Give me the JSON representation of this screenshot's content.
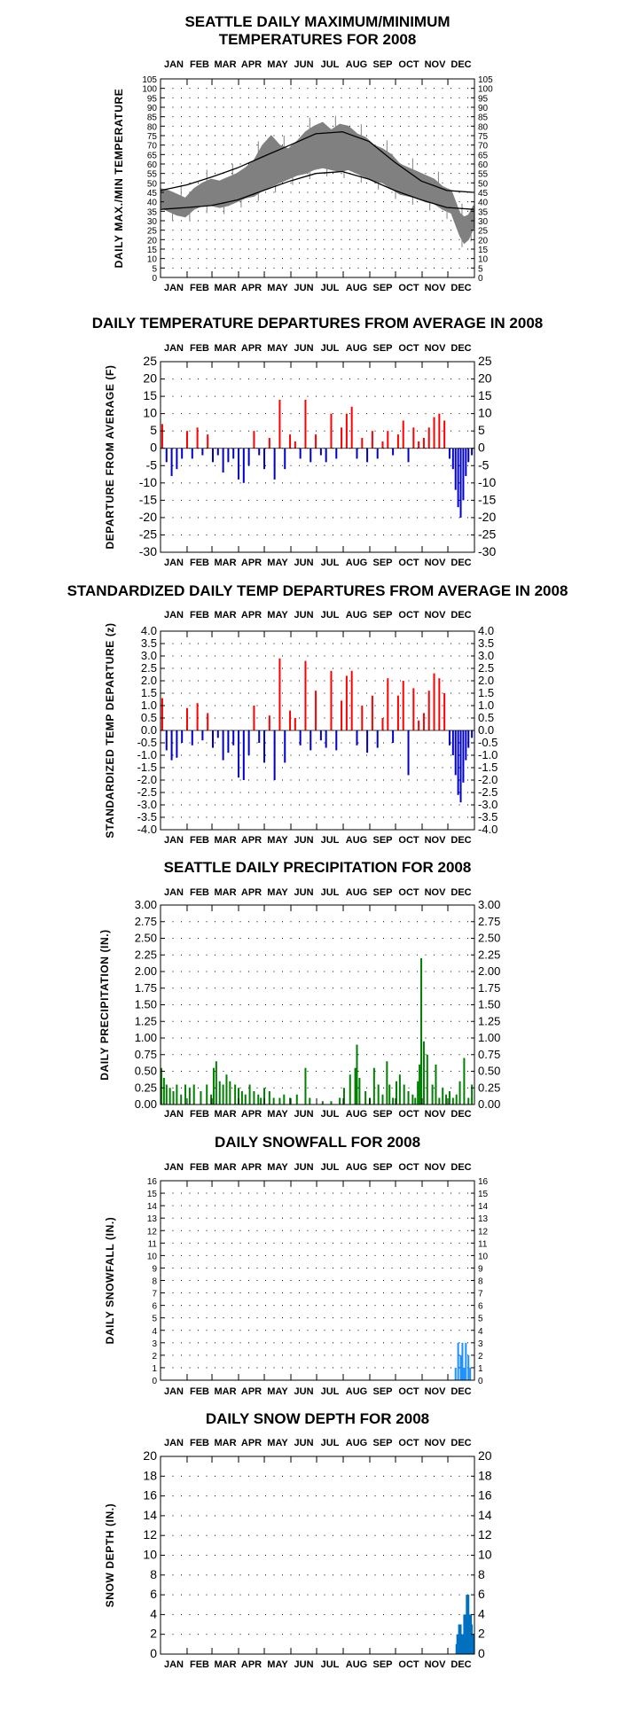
{
  "months": [
    "JAN",
    "FEB",
    "MAR",
    "APR",
    "MAY",
    "JUN",
    "JUL",
    "AUG",
    "SEP",
    "OCT",
    "NOV",
    "DEC"
  ],
  "colors": {
    "observed_range": "#808080",
    "normal_line": "#000000",
    "positive_bar": "#ff0000",
    "negative_bar": "#0000cc",
    "precip_bar": "#008000",
    "snowfall_bar": "#1e90ff",
    "snowdepth_bar": "#0070c0",
    "grid_dot": "#000000"
  },
  "chart_data": [
    {
      "id": "temps",
      "type": "area",
      "title": [
        "SEATTLE DAILY MAXIMUM/MINIMUM",
        "TEMPERATURES FOR 2008"
      ],
      "ylabel": "DAILY MAX./MIN TEMPERATURE",
      "ylim": [
        0,
        105
      ],
      "ytick_step": 5,
      "xlim": [
        1,
        366
      ],
      "grid": true,
      "series": [
        {
          "role": "observed_max",
          "x": [
            1,
            10,
            20,
            30,
            40,
            50,
            60,
            70,
            80,
            90,
            100,
            110,
            120,
            130,
            140,
            150,
            160,
            170,
            180,
            190,
            200,
            210,
            220,
            230,
            240,
            250,
            260,
            270,
            280,
            290,
            300,
            310,
            320,
            330,
            340,
            350,
            355,
            360,
            366
          ],
          "values": [
            47,
            46,
            44,
            42,
            47,
            50,
            52,
            51,
            53,
            55,
            58,
            62,
            70,
            75,
            70,
            68,
            72,
            77,
            80,
            82,
            78,
            81,
            80,
            76,
            74,
            70,
            68,
            65,
            60,
            58,
            56,
            54,
            52,
            48,
            46,
            34,
            32,
            33,
            38
          ]
        },
        {
          "role": "observed_min",
          "x": [
            1,
            10,
            20,
            30,
            40,
            50,
            60,
            70,
            80,
            90,
            100,
            110,
            120,
            130,
            140,
            150,
            160,
            170,
            180,
            190,
            200,
            210,
            220,
            230,
            240,
            250,
            260,
            270,
            280,
            290,
            300,
            310,
            320,
            330,
            340,
            350,
            355,
            360,
            366
          ],
          "values": [
            37,
            35,
            33,
            32,
            36,
            38,
            38,
            37,
            38,
            40,
            42,
            43,
            46,
            48,
            50,
            52,
            54,
            55,
            57,
            58,
            57,
            56,
            57,
            55,
            53,
            51,
            50,
            47,
            44,
            43,
            42,
            40,
            39,
            36,
            34,
            22,
            18,
            20,
            26
          ]
        },
        {
          "role": "normal_max",
          "x": [
            1,
            32,
            60,
            91,
            121,
            152,
            182,
            213,
            244,
            274,
            305,
            335,
            366
          ],
          "values": [
            46,
            49,
            53,
            58,
            64,
            70,
            76,
            77,
            72,
            61,
            51,
            46,
            45
          ]
        },
        {
          "role": "normal_min",
          "x": [
            1,
            32,
            60,
            91,
            121,
            152,
            182,
            213,
            244,
            274,
            305,
            335,
            366
          ],
          "values": [
            36,
            37,
            38,
            41,
            46,
            51,
            55,
            56,
            52,
            46,
            41,
            37,
            36
          ]
        }
      ]
    },
    {
      "id": "departures",
      "type": "bar",
      "title": [
        "DAILY TEMPERATURE DEPARTURES FROM AVERAGE IN 2008"
      ],
      "ylabel": "DEPARTURE FROM AVERAGE (F)",
      "ylim": [
        -30,
        25
      ],
      "ytick_step": 5,
      "xlim": [
        1,
        366
      ],
      "grid": true,
      "x": [
        3,
        8,
        14,
        20,
        26,
        32,
        38,
        44,
        50,
        56,
        62,
        68,
        74,
        80,
        86,
        92,
        98,
        104,
        110,
        116,
        122,
        128,
        134,
        140,
        146,
        152,
        158,
        164,
        170,
        176,
        182,
        188,
        194,
        200,
        206,
        212,
        218,
        224,
        230,
        236,
        242,
        248,
        254,
        260,
        266,
        272,
        278,
        284,
        290,
        296,
        302,
        308,
        314,
        320,
        326,
        332,
        338,
        342,
        345,
        348,
        351,
        354,
        357,
        360,
        364
      ],
      "values": [
        7,
        -4,
        -8,
        -6,
        -3,
        5,
        -3,
        6,
        -2,
        4,
        -4,
        -2,
        -7,
        -4,
        -3,
        -9,
        -10,
        -5,
        5,
        -2,
        -6,
        3,
        -9,
        14,
        -6,
        4,
        2,
        -3,
        14,
        -4,
        4,
        -2,
        -4,
        10,
        -3,
        6,
        10,
        12,
        -3,
        3,
        -4,
        5,
        -3,
        2,
        5,
        -2,
        4,
        8,
        -4,
        6,
        2,
        3,
        6,
        9,
        10,
        8,
        -3,
        -6,
        -12,
        -17,
        -20,
        -15,
        -8,
        -4,
        -2
      ]
    },
    {
      "id": "standardized",
      "type": "bar",
      "title": [
        "STANDARDIZED DAILY TEMP DEPARTURES FROM AVERAGE IN 2008"
      ],
      "ylabel": "STANDARDIZED TEMP DEPARTURE (z)",
      "ylim": [
        -4,
        4
      ],
      "ytick_step": 0.5,
      "xlim": [
        1,
        366
      ],
      "grid": true,
      "x": [
        3,
        8,
        14,
        20,
        26,
        32,
        38,
        44,
        50,
        56,
        62,
        68,
        74,
        80,
        86,
        92,
        98,
        104,
        110,
        116,
        122,
        128,
        134,
        140,
        146,
        152,
        158,
        164,
        170,
        176,
        182,
        188,
        194,
        200,
        206,
        212,
        218,
        224,
        230,
        236,
        242,
        248,
        254,
        260,
        266,
        272,
        278,
        284,
        290,
        296,
        302,
        308,
        314,
        320,
        326,
        332,
        338,
        342,
        345,
        348,
        351,
        354,
        357,
        360,
        364
      ],
      "values": [
        1.3,
        -0.8,
        -1.2,
        -1.1,
        -0.5,
        0.9,
        -0.6,
        1.1,
        -0.4,
        0.7,
        -0.7,
        -0.3,
        -1.2,
        -0.9,
        -0.6,
        -1.9,
        -2.0,
        -1.0,
        1.0,
        -0.5,
        -1.3,
        0.6,
        -2.0,
        2.9,
        -1.3,
        0.8,
        0.5,
        -0.6,
        2.8,
        -0.8,
        1.6,
        -0.4,
        -0.7,
        2.4,
        -0.8,
        1.2,
        2.2,
        2.4,
        -0.6,
        1.0,
        -0.9,
        1.4,
        -0.7,
        0.5,
        2.1,
        -0.5,
        1.4,
        2.0,
        -1.8,
        1.7,
        0.4,
        0.7,
        1.6,
        2.3,
        2.1,
        1.5,
        -0.6,
        -1.0,
        -1.8,
        -2.6,
        -2.9,
        -2.1,
        -1.2,
        -0.7,
        -0.3
      ]
    },
    {
      "id": "precip",
      "type": "bar",
      "title": [
        "SEATTLE DAILY PRECIPITATION FOR 2008"
      ],
      "ylabel": "DAILY PRECIPITATION (IN.)",
      "ylim": [
        0,
        3
      ],
      "ytick_step": 0.25,
      "xlim": [
        1,
        366
      ],
      "grid": true,
      "x": [
        2,
        5,
        8,
        12,
        16,
        20,
        25,
        30,
        35,
        40,
        48,
        55,
        60,
        63,
        66,
        70,
        74,
        78,
        82,
        88,
        92,
        96,
        100,
        105,
        110,
        115,
        118,
        122,
        128,
        133,
        140,
        145,
        152,
        160,
        170,
        175,
        190,
        200,
        210,
        215,
        222,
        228,
        230,
        233,
        240,
        245,
        250,
        255,
        260,
        265,
        268,
        272,
        276,
        280,
        285,
        290,
        295,
        298,
        301,
        303,
        305,
        308,
        312,
        318,
        322,
        326,
        330,
        334,
        338,
        342,
        346,
        350,
        355,
        360,
        364
      ],
      "values": [
        0.55,
        0.4,
        0.3,
        0.25,
        0.2,
        0.3,
        0.15,
        0.3,
        0.25,
        0.3,
        0.2,
        0.3,
        0.15,
        0.55,
        0.65,
        0.35,
        0.3,
        0.45,
        0.35,
        0.3,
        0.25,
        0.2,
        0.15,
        0.3,
        0.2,
        0.15,
        0.1,
        0.25,
        0.2,
        0.1,
        0.1,
        0.15,
        0.1,
        0.15,
        0.55,
        0.1,
        0.05,
        0.05,
        0.1,
        0.25,
        0.45,
        0.55,
        0.9,
        0.4,
        0.2,
        0.1,
        0.55,
        0.3,
        0.15,
        0.65,
        0.3,
        0.1,
        0.35,
        0.45,
        0.3,
        0.2,
        0.15,
        0.1,
        0.35,
        0.6,
        2.2,
        0.95,
        0.75,
        0.3,
        0.6,
        0.1,
        0.25,
        0.15,
        0.2,
        0.1,
        0.15,
        0.35,
        0.7,
        0.1,
        0.3
      ]
    },
    {
      "id": "snowfall",
      "type": "bar",
      "title": [
        "DAILY SNOWFALL FOR 2008"
      ],
      "ylabel": "DAILY SNOWFALL (IN.)",
      "ylim": [
        0,
        16
      ],
      "ytick_step": 1,
      "xlim": [
        1,
        366
      ],
      "grid": true,
      "x": [
        345,
        348,
        351,
        353,
        355,
        357,
        360,
        362
      ],
      "values": [
        1,
        3,
        2,
        3,
        1,
        3,
        2,
        1
      ]
    },
    {
      "id": "snowdepth",
      "type": "bar",
      "title": [
        "DAILY SNOW DEPTH FOR 2008"
      ],
      "ylabel": "SNOW DEPTH (IN.)",
      "ylim": [
        0,
        20
      ],
      "ytick_step": 2,
      "xlim": [
        1,
        366
      ],
      "grid": true,
      "x": [
        346,
        347,
        348,
        349,
        350,
        351,
        352,
        353,
        354,
        355,
        356,
        357,
        358,
        359,
        360,
        361,
        362,
        363,
        364,
        365,
        366
      ],
      "values": [
        1,
        2,
        2,
        3,
        3,
        3,
        2,
        2,
        2,
        4,
        4,
        4,
        6,
        6,
        6,
        4,
        4,
        4,
        3,
        2,
        2
      ]
    }
  ]
}
